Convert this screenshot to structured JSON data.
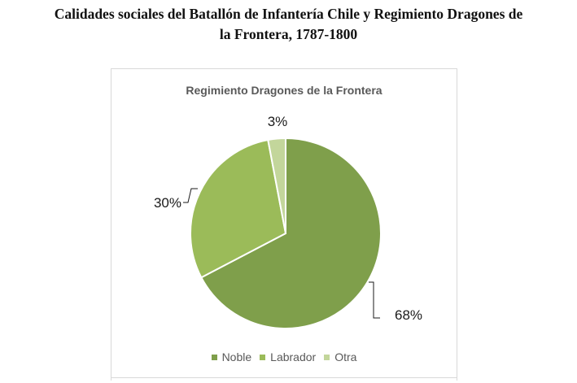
{
  "heading": {
    "line1": "Calidades sociales del Batallón de Infantería Chile y Regimiento Dragones de",
    "line2": "la Frontera, 1787-1800"
  },
  "chart_data": {
    "type": "pie",
    "title": "Regimiento Dragones de la Frontera",
    "categories": [
      "Noble",
      "Labrador",
      "Otra"
    ],
    "values": [
      68,
      30,
      3
    ],
    "labels": [
      "68%",
      "30%",
      "3%"
    ],
    "colors": [
      "#7f9f4b",
      "#9bbb59",
      "#c3d69b"
    ],
    "legend_position": "bottom"
  }
}
